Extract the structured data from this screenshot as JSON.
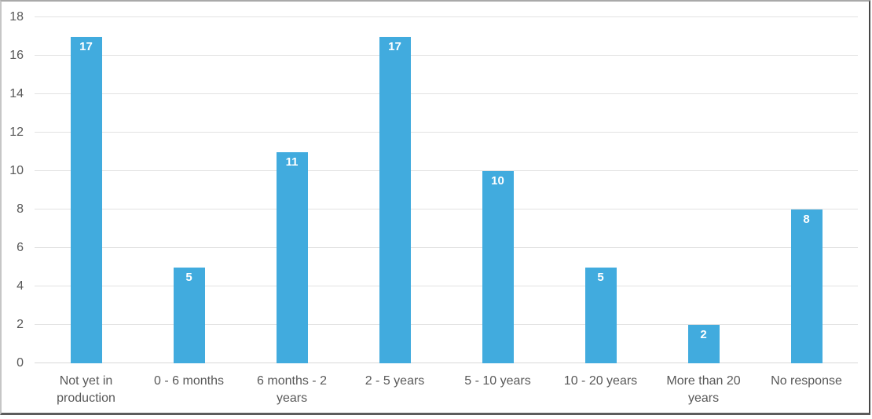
{
  "chart_data": {
    "type": "bar",
    "title": "",
    "xlabel": "",
    "ylabel": "",
    "categories": [
      "Not yet in production",
      "0 - 6 months",
      "6 months - 2 years",
      "2 - 5 years",
      "5 - 10 years",
      "10 - 20 years",
      "More than 20 years",
      "No response"
    ],
    "values": [
      17,
      5,
      11,
      17,
      10,
      5,
      2,
      8
    ],
    "ylim": [
      0,
      18
    ],
    "ytick_step": 2,
    "ytick_labels": [
      "0",
      "2",
      "4",
      "6",
      "8",
      "10",
      "12",
      "14",
      "16",
      "18"
    ],
    "grid": true,
    "legend": false,
    "value_labels_shown": true,
    "colors": {
      "bar": "#41abde",
      "value_label": "#ffffff",
      "axis_text": "#595959",
      "gridline": "#e2e2e2"
    }
  }
}
